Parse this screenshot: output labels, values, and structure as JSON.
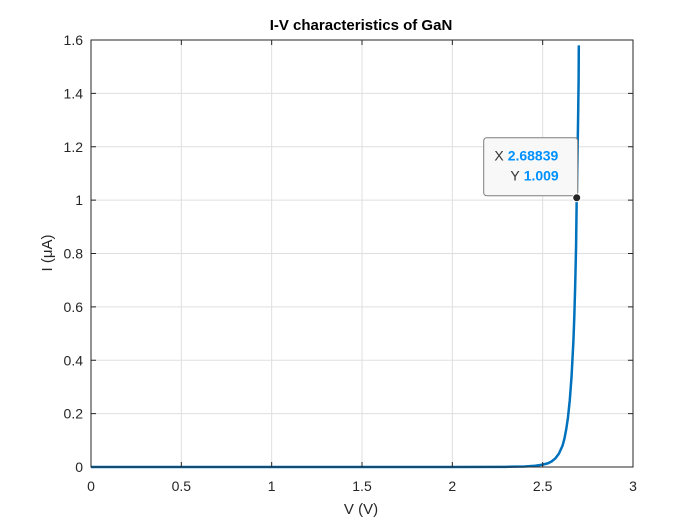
{
  "chart_data": {
    "type": "line",
    "title": "I-V characteristics of GaN",
    "xlabel": "V (V)",
    "ylabel": "I (μA)",
    "xlim": [
      0,
      3
    ],
    "ylim": [
      0,
      1.6
    ],
    "xticks": [
      0,
      0.5,
      1,
      1.5,
      2,
      2.5,
      3
    ],
    "xtick_labels": [
      "0",
      "0.5",
      "1",
      "1.5",
      "2",
      "2.5",
      "3"
    ],
    "yticks": [
      0,
      0.2,
      0.4,
      0.6,
      0.8,
      1,
      1.2,
      1.4,
      1.6
    ],
    "ytick_labels": [
      "0",
      "0.2",
      "0.4",
      "0.6",
      "0.8",
      "1",
      "1.2",
      "1.4",
      "1.6"
    ],
    "grid": true,
    "box": true,
    "series": [
      {
        "color": "#0072BD",
        "x": [
          0,
          0.5,
          1,
          1.5,
          2,
          2.3,
          2.4,
          2.45,
          2.5,
          2.53,
          2.55,
          2.57,
          2.59,
          2.61,
          2.62,
          2.63,
          2.64,
          2.65,
          2.66,
          2.67,
          2.675,
          2.68,
          2.685,
          2.68839,
          2.69,
          2.693,
          2.696,
          2.699,
          2.7
        ],
        "y": [
          0,
          0,
          0,
          0,
          0,
          0.0006,
          0.002,
          0.004,
          0.009,
          0.014,
          0.021,
          0.032,
          0.05,
          0.08,
          0.105,
          0.14,
          0.185,
          0.25,
          0.34,
          0.47,
          0.56,
          0.68,
          0.83,
          1.009,
          1.05,
          1.17,
          1.3,
          1.45,
          1.58
        ]
      }
    ],
    "datatip": {
      "x_key": "X",
      "y_key": "Y",
      "x_label": "2.68839",
      "y_label": "1.009",
      "x": 2.68839,
      "y": 1.009,
      "value_color": "#0091FF"
    }
  }
}
